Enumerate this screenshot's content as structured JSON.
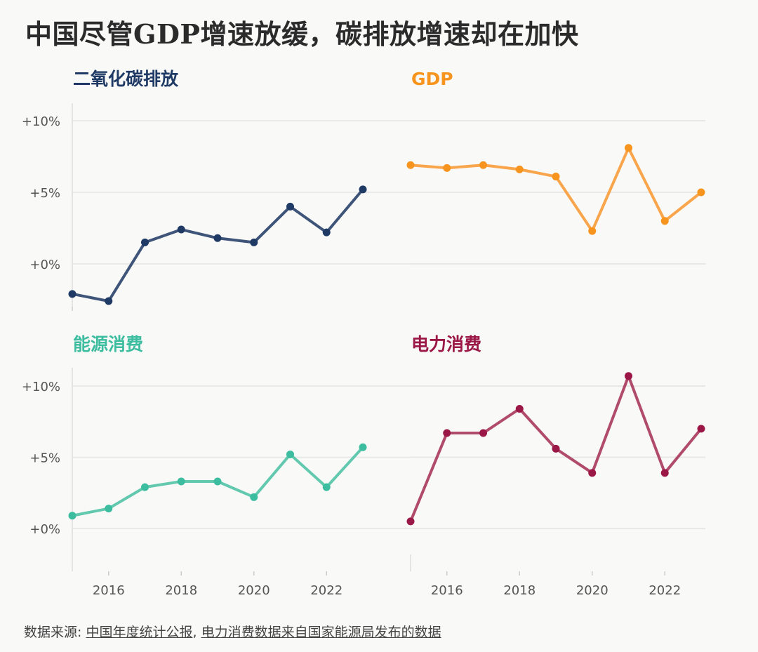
{
  "title": "中国尽管GDP增速放缓，碳排放增速却在加快",
  "source": {
    "prefix": "数据来源: ",
    "link1": "中国年度统计公报",
    "separator": ", ",
    "link2": "电力消费数据来自国家能源局发布的数据"
  },
  "chart_data": [
    {
      "type": "line",
      "title": "二氧化碳排放",
      "color": "#1f3a64",
      "line_color": "#3e5478",
      "x": [
        2015,
        2016,
        2017,
        2018,
        2019,
        2020,
        2021,
        2022,
        2023
      ],
      "values": [
        -2.1,
        -2.6,
        1.5,
        2.4,
        1.8,
        1.5,
        4.0,
        2.2,
        5.2
      ],
      "ylim": [
        -3,
        11
      ],
      "yticks": [
        0,
        5,
        10
      ],
      "ytick_labels": [
        "+0%",
        "+5%",
        "+10%"
      ],
      "xticks": [
        2016,
        2018,
        2020,
        2022
      ],
      "show_xticks": false,
      "show_yticks": true
    },
    {
      "type": "line",
      "title": "GDP",
      "color": "#f7941d",
      "line_color": "#f9a54c",
      "x": [
        2015,
        2016,
        2017,
        2018,
        2019,
        2020,
        2021,
        2022,
        2023
      ],
      "values": [
        6.9,
        6.7,
        6.9,
        6.6,
        6.1,
        2.3,
        8.1,
        3.0,
        5.0
      ],
      "ylim": [
        -3,
        11
      ],
      "yticks": [
        0,
        5,
        10
      ],
      "ytick_labels": [
        "+0%",
        "+5%",
        "+10%"
      ],
      "xticks": [
        2016,
        2018,
        2020,
        2022
      ],
      "show_xticks": false,
      "show_yticks": false
    },
    {
      "type": "line",
      "title": "能源消费",
      "color": "#3dbd9f",
      "line_color": "#62c8ae",
      "x": [
        2015,
        2016,
        2017,
        2018,
        2019,
        2020,
        2021,
        2022,
        2023
      ],
      "values": [
        0.9,
        1.4,
        2.9,
        3.3,
        3.3,
        2.2,
        5.2,
        2.9,
        5.7
      ],
      "ylim": [
        -3,
        11
      ],
      "yticks": [
        0,
        5,
        10
      ],
      "ytick_labels": [
        "+0%",
        "+5%",
        "+10%"
      ],
      "xticks": [
        2016,
        2018,
        2020,
        2022
      ],
      "xtick_labels": [
        "2016",
        "2018",
        "2020",
        "2022"
      ],
      "show_xticks": true,
      "show_yticks": true
    },
    {
      "type": "line",
      "title": "电力消费",
      "color": "#9b1746",
      "line_color": "#b04b6c",
      "x": [
        2015,
        2016,
        2017,
        2018,
        2019,
        2020,
        2021,
        2022,
        2023
      ],
      "values": [
        0.5,
        6.7,
        6.7,
        8.4,
        5.6,
        3.9,
        10.7,
        3.9,
        7.0
      ],
      "ylim": [
        -3,
        11
      ],
      "yticks": [
        0,
        5,
        10
      ],
      "ytick_labels": [
        "+0%",
        "+5%",
        "+10%"
      ],
      "xticks": [
        2016,
        2018,
        2020,
        2022
      ],
      "xtick_labels": [
        "2016",
        "2018",
        "2020",
        "2022"
      ],
      "show_xticks": true,
      "show_yticks": false
    }
  ]
}
